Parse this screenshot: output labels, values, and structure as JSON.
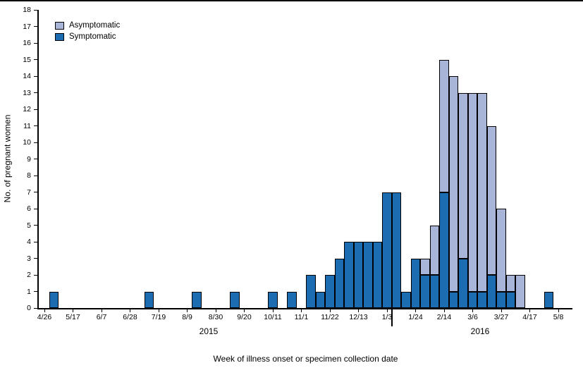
{
  "figure": {
    "y_axis_title": "No. of pregnant women",
    "x_axis_title": "Week of illness onset or specimen collection date",
    "year_left": "2015",
    "year_right": "2016"
  },
  "chart_data": {
    "type": "bar",
    "stacked": true,
    "title": "",
    "xlabel": "Week of illness onset or specimen collection date",
    "ylabel": "No. of pregnant women",
    "ylim": [
      0,
      18
    ],
    "y_tick_step": 1,
    "grid": false,
    "legend_position": "top-left-inside",
    "x_tick_week_interval": 3,
    "x_tick_labels": [
      "4/26",
      "5/17",
      "6/7",
      "6/28",
      "7/19",
      "8/9",
      "8/30",
      "9/20",
      "10/11",
      "11/1",
      "11/22",
      "12/13",
      "1/3",
      "1/24",
      "2/14",
      "3/6",
      "3/27",
      "4/17",
      "5/8"
    ],
    "year_divider_after_week": "1/3",
    "weeks": [
      "4/26",
      "5/3",
      "5/10",
      "5/17",
      "5/24",
      "5/31",
      "6/7",
      "6/14",
      "6/21",
      "6/28",
      "7/5",
      "7/12",
      "7/19",
      "7/26",
      "8/2",
      "8/9",
      "8/16",
      "8/23",
      "8/30",
      "9/6",
      "9/13",
      "9/20",
      "9/27",
      "10/4",
      "10/11",
      "10/18",
      "10/25",
      "11/1",
      "11/8",
      "11/15",
      "11/22",
      "11/29",
      "12/6",
      "12/13",
      "12/20",
      "12/27",
      "1/3",
      "1/10",
      "1/17",
      "1/24",
      "1/31",
      "2/7",
      "2/14",
      "2/21",
      "2/28",
      "3/6",
      "3/13",
      "3/20",
      "3/27",
      "4/3",
      "4/10",
      "4/17",
      "4/24",
      "5/1",
      "5/8"
    ],
    "series": [
      {
        "name": "Symptomatic",
        "color": "#1b6cb1",
        "values": [
          0,
          1,
          0,
          0,
          0,
          0,
          0,
          0,
          0,
          0,
          0,
          1,
          0,
          0,
          0,
          0,
          1,
          0,
          0,
          0,
          1,
          0,
          0,
          0,
          1,
          0,
          1,
          0,
          2,
          1,
          2,
          3,
          4,
          4,
          4,
          4,
          7,
          7,
          1,
          3,
          2,
          2,
          7,
          1,
          3,
          1,
          1,
          2,
          1,
          1,
          0,
          0,
          0,
          1,
          0
        ]
      },
      {
        "name": "Asymptomatic",
        "color": "#a9b5d8",
        "values": [
          0,
          0,
          0,
          0,
          0,
          0,
          0,
          0,
          0,
          0,
          0,
          0,
          0,
          0,
          0,
          0,
          0,
          0,
          0,
          0,
          0,
          0,
          0,
          0,
          0,
          0,
          0,
          0,
          0,
          0,
          0,
          0,
          0,
          0,
          0,
          0,
          0,
          0,
          0,
          0,
          1,
          3,
          8,
          13,
          10,
          12,
          12,
          9,
          5,
          1,
          2,
          0,
          0,
          0,
          0
        ]
      }
    ],
    "legend": [
      {
        "label": "Asymptomatic",
        "color": "#a9b5d8"
      },
      {
        "label": "Symptomatic",
        "color": "#1b6cb1"
      }
    ]
  }
}
